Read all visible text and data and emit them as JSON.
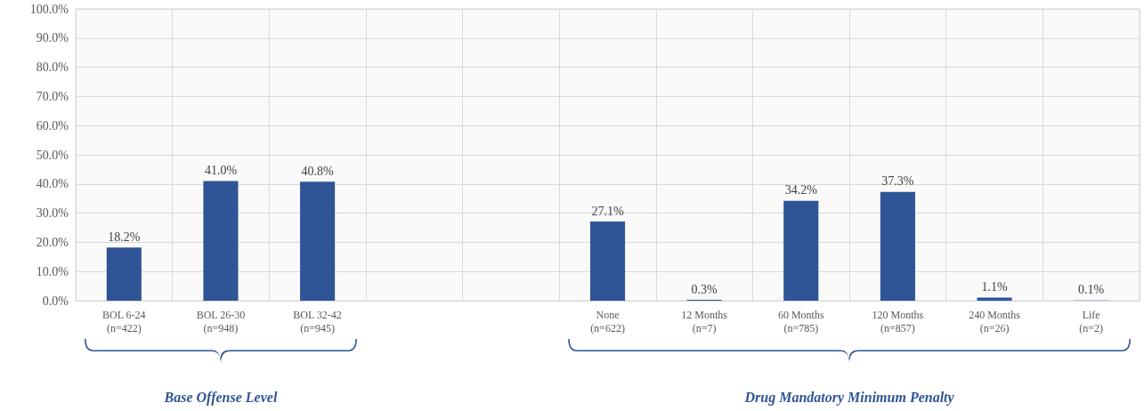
{
  "chart_data": {
    "type": "bar",
    "categories": [
      "BOL 6-24\n(n=422)",
      "BOL 26-30\n(n=948)",
      "BOL 32-42\n(n=945)",
      null,
      null,
      "None\n(n=622)",
      "12 Months\n(n=7)",
      "60 Months\n(n=785)",
      "120 Months\n(n=857)",
      "240 Months\n(n=26)",
      "Life\n(n=2)"
    ],
    "values": [
      18.2,
      41.0,
      40.8,
      null,
      null,
      27.1,
      0.3,
      34.2,
      37.3,
      1.1,
      0.1
    ],
    "value_labels": [
      "18.2%",
      "41.0%",
      "40.8%",
      null,
      null,
      "27.1%",
      "0.3%",
      "34.2%",
      "37.3%",
      "1.1%",
      "0.1%"
    ],
    "color": "#2f5597",
    "ylim": [
      0,
      100
    ],
    "yticks": [
      {
        "value": 0,
        "label": "0.0%"
      },
      {
        "value": 10,
        "label": "10.0%"
      },
      {
        "value": 20,
        "label": "20.0%"
      },
      {
        "value": 30,
        "label": "30.0%"
      },
      {
        "value": 40,
        "label": "40.0%"
      },
      {
        "value": 50,
        "label": "50.0%"
      },
      {
        "value": 60,
        "label": "60.0%"
      },
      {
        "value": 70,
        "label": "70.0%"
      },
      {
        "value": 80,
        "label": "80.0%"
      },
      {
        "value": 90,
        "label": "90.0%"
      },
      {
        "value": 100,
        "label": "100.0%"
      }
    ],
    "grid": true,
    "annotations": [
      "Base Offense Level",
      "Drug Mandatory Minimum Penalty"
    ]
  }
}
